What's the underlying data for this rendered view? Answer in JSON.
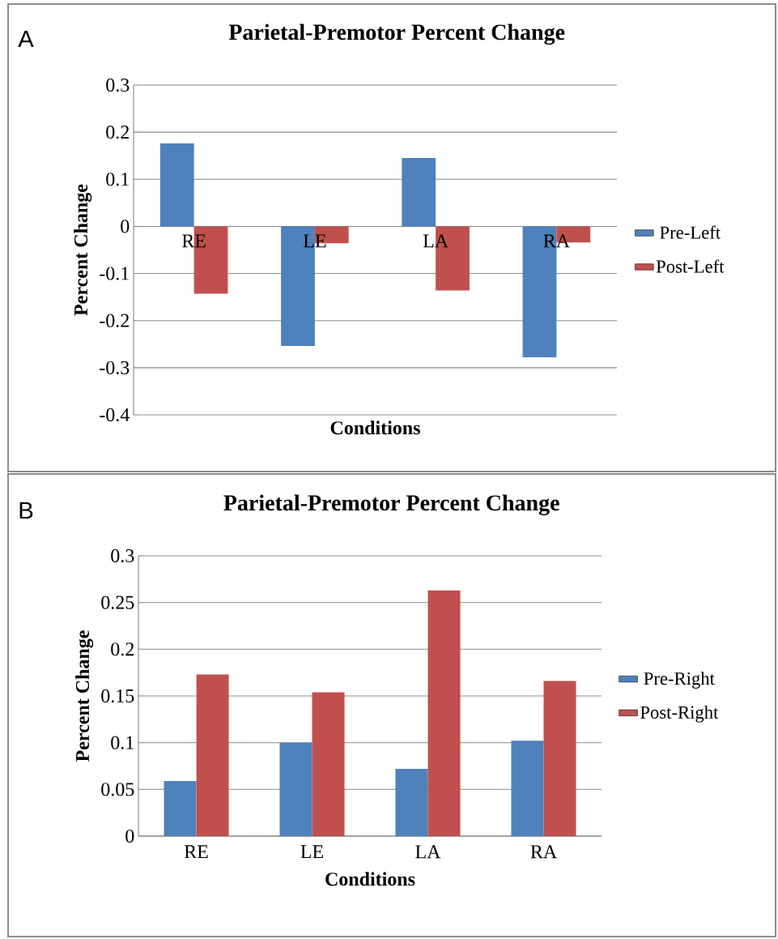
{
  "chart_data": [
    {
      "type": "bar",
      "title": "Parietal-Premotor  Percent  Change",
      "xlabel": "Conditions",
      "ylabel": "Percent Change",
      "annotations": [
        "A"
      ],
      "categories": [
        "RE",
        "LE",
        "LA",
        "RA"
      ],
      "series": [
        {
          "name": "Pre-Left",
          "color": "#4f81bd",
          "values": [
            0.176,
            -0.254,
            0.145,
            -0.278
          ]
        },
        {
          "name": "Post-Left",
          "color": "#c0504d",
          "values": [
            -0.143,
            -0.036,
            -0.136,
            -0.034
          ]
        }
      ],
      "ylim": [
        -0.4,
        0.3
      ],
      "yticks": [
        -0.4,
        -0.3,
        -0.2,
        -0.1,
        0,
        0.1,
        0.2,
        0.3
      ],
      "grid": "y",
      "legend": "right"
    },
    {
      "type": "bar",
      "title": "Parietal-Premotor  Percent  Change",
      "xlabel": "Conditions",
      "ylabel": "Percent Change",
      "annotations": [
        "B"
      ],
      "categories": [
        "RE",
        "LE",
        "LA",
        "RA"
      ],
      "series": [
        {
          "name": "Pre-Right",
          "color": "#4f81bd",
          "values": [
            0.059,
            0.1,
            0.072,
            0.102
          ]
        },
        {
          "name": "Post-Right",
          "color": "#c0504d",
          "values": [
            0.173,
            0.154,
            0.263,
            0.166
          ]
        }
      ],
      "ylim": [
        0,
        0.3
      ],
      "yticks": [
        0,
        0.05,
        0.1,
        0.15,
        0.2,
        0.25,
        0.3
      ],
      "grid": "y",
      "legend": "right"
    }
  ]
}
